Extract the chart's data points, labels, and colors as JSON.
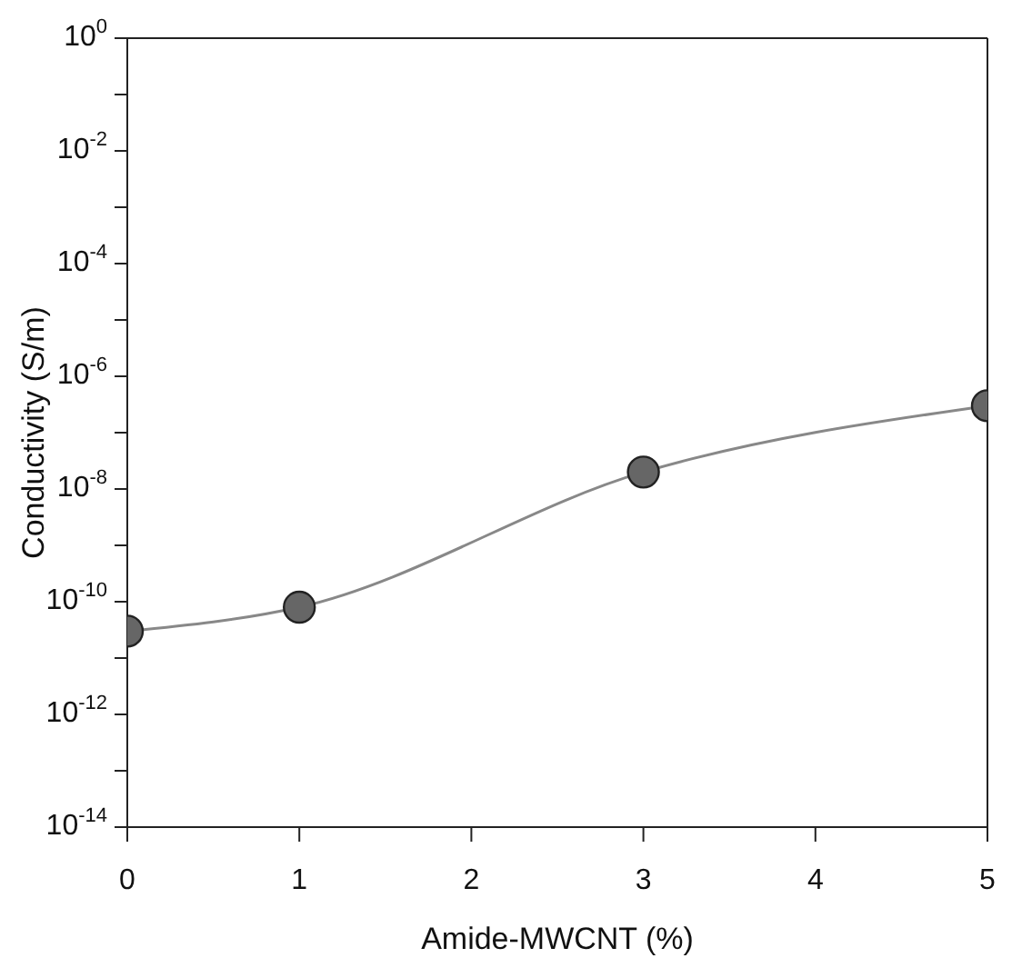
{
  "chart_data": {
    "type": "line",
    "xlabel": "Amide-MWCNT (%)",
    "ylabel": "Conductivity (S/m)",
    "x": [
      0,
      1,
      3,
      5
    ],
    "series": [
      {
        "color": "#666666",
        "values": [
          3e-11,
          8e-11,
          2e-08,
          3e-07
        ]
      }
    ],
    "log": "y",
    "marker": "circle",
    "line_style": "solid",
    "grid": false,
    "legend": false,
    "xlim": [
      0,
      5
    ],
    "xticks": [
      0,
      1,
      2,
      3,
      4,
      5
    ],
    "ylim": [
      1e-14,
      1
    ],
    "yticks": [
      {
        "value": 1e-14,
        "label": "10$^{-14}$"
      },
      {
        "value": 1e-13,
        "label": null
      },
      {
        "value": 1e-12,
        "label": "10$^{-12}$"
      },
      {
        "value": 1e-11,
        "label": null
      },
      {
        "value": 1e-10,
        "label": "10$^{-10}$"
      },
      {
        "value": 1e-09,
        "label": null
      },
      {
        "value": 1e-08,
        "label": "10$^{-8}$"
      },
      {
        "value": 1e-07,
        "label": null
      },
      {
        "value": 1e-06,
        "label": "10$^{-6}$"
      },
      {
        "value": 1e-05,
        "label": null
      },
      {
        "value": 0.0001,
        "label": "10$^{-4}$"
      },
      {
        "value": 0.001,
        "label": null
      },
      {
        "value": 0.01,
        "label": "10$^{-2}$"
      },
      {
        "value": 0.1,
        "label": null
      },
      {
        "value": 1,
        "label": "10$^{0}$"
      }
    ]
  }
}
